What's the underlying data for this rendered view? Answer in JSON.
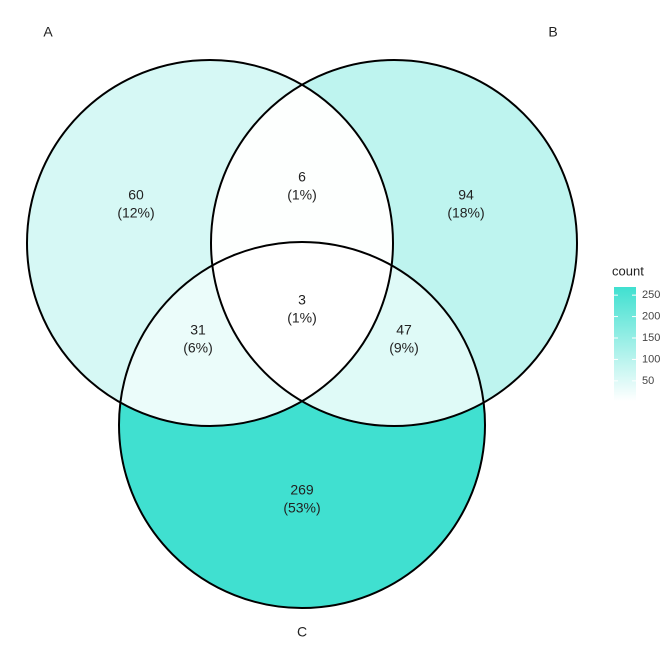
{
  "chart_data": {
    "type": "venn",
    "sets": [
      "A",
      "B",
      "C"
    ],
    "regions": [
      {
        "sets": [
          "A"
        ],
        "value": 60,
        "percent": 12,
        "percent_label": "(12%)"
      },
      {
        "sets": [
          "B"
        ],
        "value": 94,
        "percent": 18,
        "percent_label": "(18%)"
      },
      {
        "sets": [
          "C"
        ],
        "value": 269,
        "percent": 53,
        "percent_label": "(53%)"
      },
      {
        "sets": [
          "A",
          "B"
        ],
        "value": 6,
        "percent": 1,
        "percent_label": "(1%)"
      },
      {
        "sets": [
          "A",
          "C"
        ],
        "value": 31,
        "percent": 6,
        "percent_label": "(6%)"
      },
      {
        "sets": [
          "B",
          "C"
        ],
        "value": 47,
        "percent": 9,
        "percent_label": "(9%)"
      },
      {
        "sets": [
          "A",
          "B",
          "C"
        ],
        "value": 3,
        "percent": 1,
        "percent_label": "(1%)"
      }
    ],
    "legend_title": "count",
    "colorbar": {
      "lim": [
        3,
        269
      ],
      "ticks": [
        50,
        100,
        150,
        200,
        250
      ],
      "colors": [
        "#ffffff",
        "#40e0d0"
      ]
    }
  }
}
